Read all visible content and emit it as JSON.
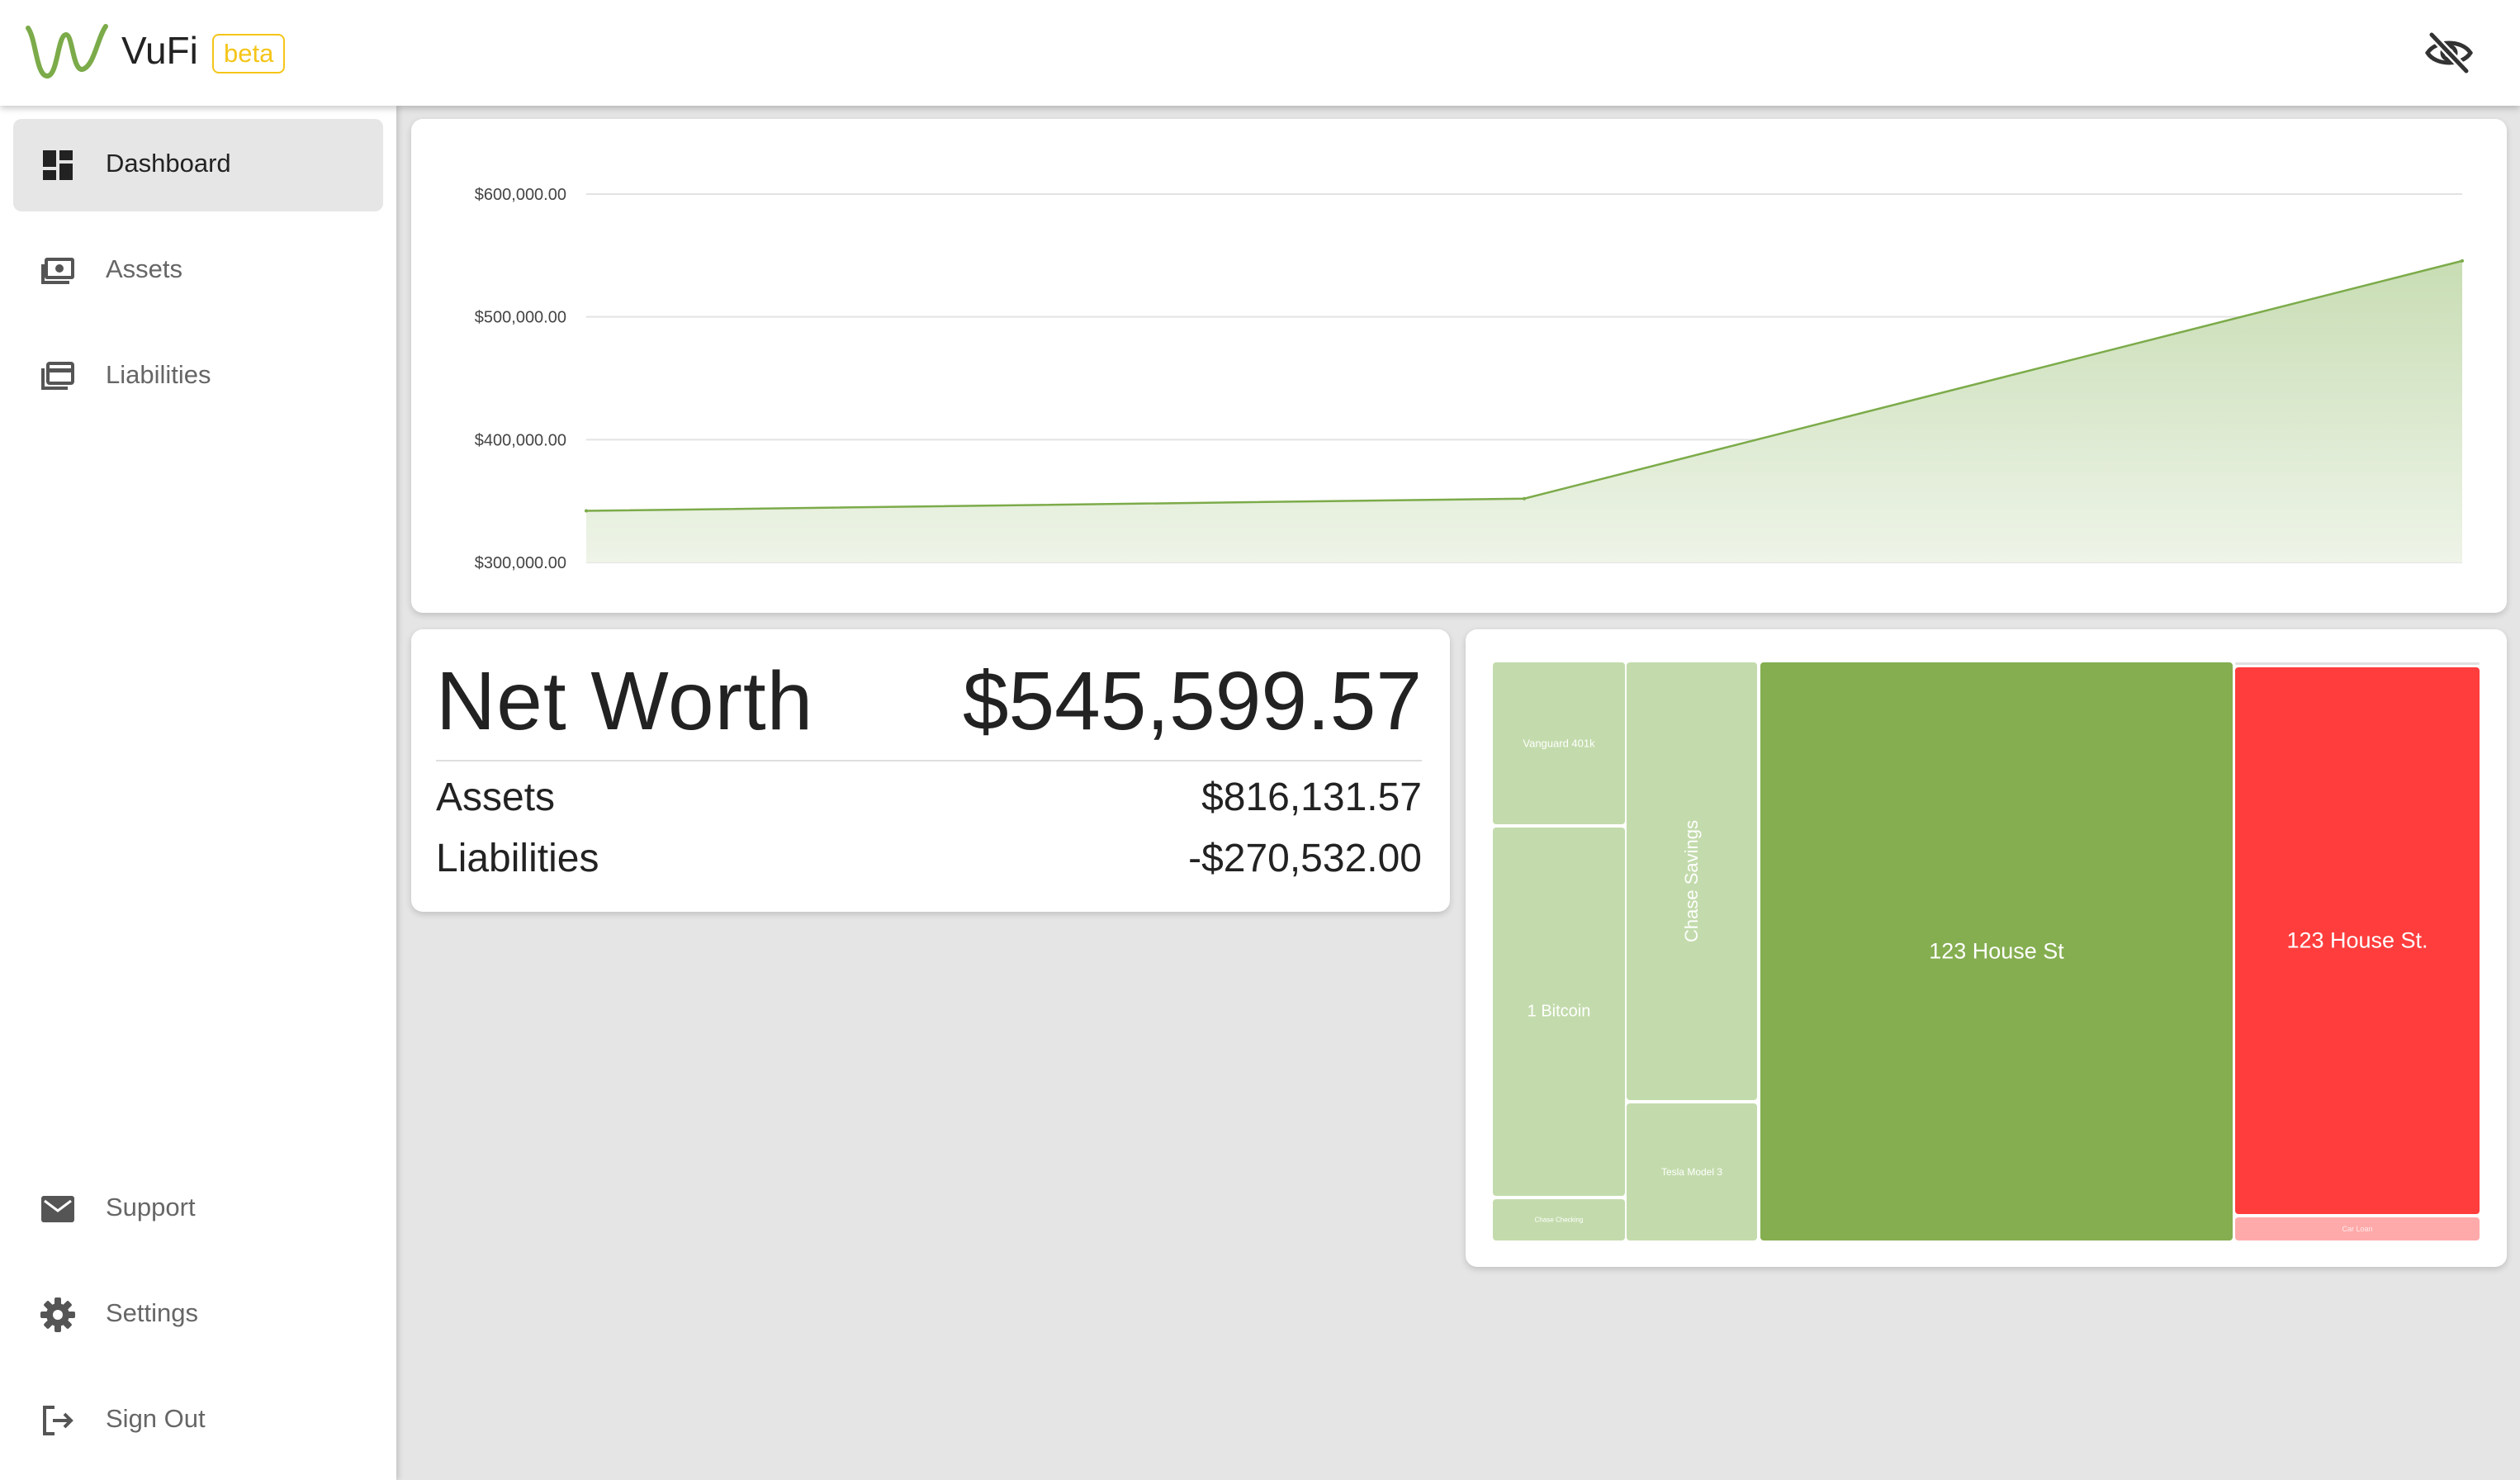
{
  "app": {
    "name": "VuFi",
    "badge": "beta"
  },
  "colors": {
    "brand_green": "#7cab4a",
    "badge_yellow": "#f5c518",
    "asset_tile": "#c3dbac",
    "main_asset_tile": "#85ae50",
    "liability_tile": "#ff3d3d",
    "minor_liability_tile": "#ffaaaa"
  },
  "icons": {
    "privacy_toggle": "visibility-off-icon"
  },
  "sidebar": {
    "items": [
      {
        "label": "Dashboard",
        "icon": "dashboard-icon",
        "active": true
      },
      {
        "label": "Assets",
        "icon": "money-icon",
        "active": false
      },
      {
        "label": "Liabilities",
        "icon": "credit-card-icon",
        "active": false
      }
    ],
    "bottom_items": [
      {
        "label": "Support",
        "icon": "mail-icon"
      },
      {
        "label": "Settings",
        "icon": "gear-icon"
      },
      {
        "label": "Sign Out",
        "icon": "sign-out-icon"
      }
    ]
  },
  "chart_data": {
    "type": "area",
    "title": "",
    "xlabel": "",
    "ylabel": "",
    "x_tick_labels": [],
    "y_ticks": [
      "$300,000.00",
      "$400,000.00",
      "$500,000.00",
      "$600,000.00"
    ],
    "ylim": [
      300000,
      600000
    ],
    "grid": true,
    "series": [
      {
        "values": [
          342000,
          352000,
          545599.57
        ]
      }
    ]
  },
  "summary": {
    "net_worth_label": "Net Worth",
    "net_worth_value": "$545,599.57",
    "assets_label": "Assets",
    "assets_value": "$816,131.57",
    "liabilities_label": "Liabilities",
    "liabilities_value": "-$270,532.00"
  },
  "treemap": {
    "assets": [
      {
        "label": "Vanguard 401k"
      },
      {
        "label": "1 Bitcoin"
      },
      {
        "label": "Chase Checking"
      },
      {
        "label": "Chase Savings"
      },
      {
        "label": "Tesla Model 3"
      },
      {
        "label": "123 House St"
      }
    ],
    "liabilities": [
      {
        "label": "123 House St."
      },
      {
        "label": "Car Loan"
      }
    ]
  }
}
